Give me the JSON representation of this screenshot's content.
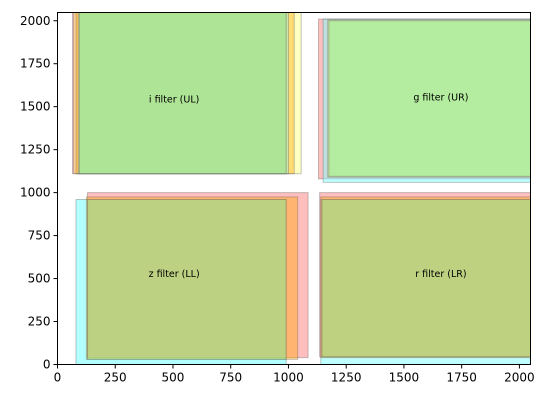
{
  "chart_data": {
    "type": "rectangles",
    "title": "",
    "xlabel": "",
    "ylabel": "",
    "xlim": [
      0,
      2048
    ],
    "ylim": [
      0,
      2048
    ],
    "grid": false,
    "xticks": [
      "0",
      "250",
      "500",
      "750",
      "1000",
      "1250",
      "1500",
      "1750",
      "2000"
    ],
    "xtick_values": [
      0,
      250,
      500,
      750,
      1000,
      1250,
      1500,
      1750,
      2000
    ],
    "yticks": [
      "0",
      "250",
      "500",
      "750",
      "1000",
      "1250",
      "1500",
      "1750",
      "2000"
    ],
    "ytick_values": [
      0,
      250,
      500,
      750,
      1000,
      1250,
      1500,
      1750,
      2000
    ],
    "regions": [
      {
        "label": "i filter (UL)",
        "label_pos": [
          505,
          1540
        ],
        "rects": [
          {
            "x0": 65,
            "x1": 990,
            "y0": 1110,
            "y1": 2048,
            "color": "#ff8080",
            "alpha": 0.5
          },
          {
            "x0": 70,
            "x1": 1055,
            "y0": 1110,
            "y1": 2048,
            "color": "#ffff66",
            "alpha": 0.4
          },
          {
            "x0": 80,
            "x1": 1025,
            "y0": 1110,
            "y1": 2048,
            "color": "#ffa500",
            "alpha": 0.4
          },
          {
            "x0": 90,
            "x1": 1000,
            "y0": 1110,
            "y1": 2048,
            "color": "#7fffff",
            "alpha": 0.4
          },
          {
            "x0": 95,
            "x1": 990,
            "y0": 1110,
            "y1": 2048,
            "color": "#90ee90",
            "alpha": 0.5
          }
        ]
      },
      {
        "label": "g filter (UR)",
        "label_pos": [
          1660,
          1550
        ],
        "rects": [
          {
            "x0": 1130,
            "x1": 2048,
            "y0": 1080,
            "y1": 2010,
            "color": "#ff8080",
            "alpha": 0.5
          },
          {
            "x0": 1150,
            "x1": 2048,
            "y0": 1060,
            "y1": 2010,
            "color": "#7fffff",
            "alpha": 0.5
          },
          {
            "x0": 1170,
            "x1": 2048,
            "y0": 1090,
            "y1": 2005,
            "color": "#ffff66",
            "alpha": 0.4
          },
          {
            "x0": 1175,
            "x1": 2048,
            "y0": 1095,
            "y1": 2000,
            "color": "#90ee90",
            "alpha": 0.5
          }
        ]
      },
      {
        "label": "z filter (LL)",
        "label_pos": [
          505,
          525
        ],
        "rects": [
          {
            "x0": 80,
            "x1": 990,
            "y0": 0,
            "y1": 960,
            "color": "#7fffff",
            "alpha": 0.6
          },
          {
            "x0": 130,
            "x1": 1085,
            "y0": 40,
            "y1": 1000,
            "color": "#ff8080",
            "alpha": 0.5
          },
          {
            "x0": 125,
            "x1": 1040,
            "y0": 30,
            "y1": 975,
            "color": "#ffa500",
            "alpha": 0.4
          },
          {
            "x0": 130,
            "x1": 990,
            "y0": 30,
            "y1": 960,
            "color": "#90ee90",
            "alpha": 0.5
          }
        ]
      },
      {
        "label": "r filter (LR)",
        "label_pos": [
          1660,
          525
        ],
        "rects": [
          {
            "x0": 1140,
            "x1": 2048,
            "y0": 0,
            "y1": 960,
            "color": "#7fffff",
            "alpha": 0.5
          },
          {
            "x0": 1135,
            "x1": 2048,
            "y0": 45,
            "y1": 1000,
            "color": "#ff8080",
            "alpha": 0.5
          },
          {
            "x0": 1140,
            "x1": 2048,
            "y0": 40,
            "y1": 975,
            "color": "#ffa500",
            "alpha": 0.4
          },
          {
            "x0": 1145,
            "x1": 2048,
            "y0": 45,
            "y1": 960,
            "color": "#90ee90",
            "alpha": 0.5
          }
        ]
      }
    ]
  }
}
